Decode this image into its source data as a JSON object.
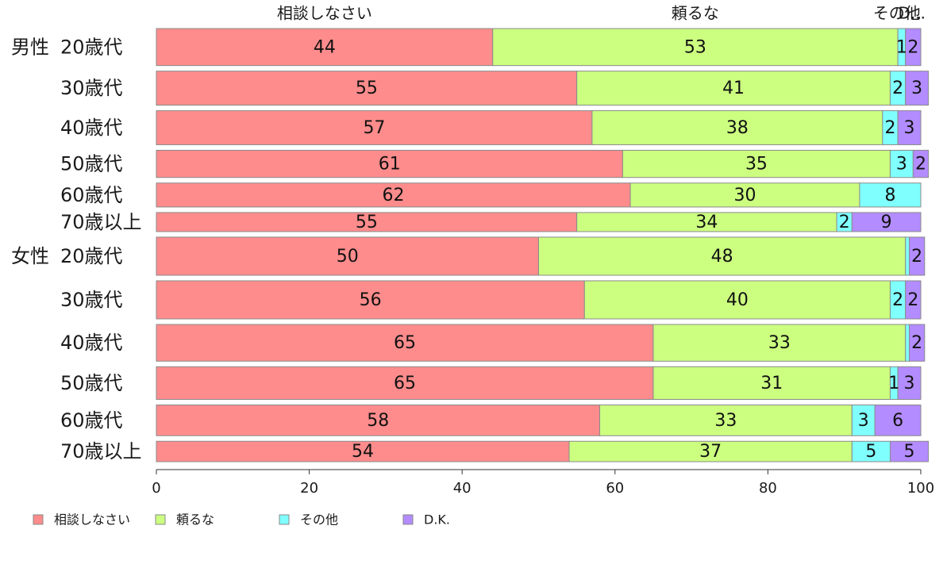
{
  "chart_data": {
    "type": "bar",
    "orientation": "horizontal",
    "stacked": true,
    "categories": [
      {
        "group": "男性",
        "label": "20歳代"
      },
      {
        "group": "",
        "label": "30歳代"
      },
      {
        "group": "",
        "label": "40歳代"
      },
      {
        "group": "",
        "label": "50歳代"
      },
      {
        "group": "",
        "label": "60歳代"
      },
      {
        "group": "",
        "label": "70歳以上"
      },
      {
        "group": "女性",
        "label": "20歳代"
      },
      {
        "group": "",
        "label": "30歳代"
      },
      {
        "group": "",
        "label": "40歳代"
      },
      {
        "group": "",
        "label": "50歳代"
      },
      {
        "group": "",
        "label": "60歳代"
      },
      {
        "group": "",
        "label": "70歳以上"
      }
    ],
    "row_weights": [
      1.36,
      1.25,
      1.25,
      1.0,
      0.88,
      0.7,
      1.4,
      1.4,
      1.35,
      1.2,
      1.13,
      0.75
    ],
    "series": [
      {
        "name": "相談しなさい",
        "color": "#ff8c8c",
        "values": [
          44,
          55,
          57,
          61,
          62,
          55,
          50,
          56,
          65,
          65,
          58,
          54
        ]
      },
      {
        "name": "頼るな",
        "color": "#ccff80",
        "values": [
          53,
          41,
          38,
          35,
          30,
          34,
          48,
          40,
          33,
          31,
          33,
          37
        ]
      },
      {
        "name": "その他",
        "color": "#80ffff",
        "values": [
          1,
          2,
          2,
          3,
          8,
          2,
          0.5,
          2,
          0.5,
          1,
          3,
          5
        ]
      },
      {
        "name": "D.K.",
        "color": "#b38cff",
        "values": [
          2,
          3,
          3,
          2,
          0,
          9,
          2,
          2,
          2,
          3,
          6,
          5
        ]
      }
    ],
    "segment_labels": [
      [
        "44",
        "53",
        "1",
        "2"
      ],
      [
        "55",
        "41",
        "2",
        "3"
      ],
      [
        "57",
        "38",
        "2",
        "3"
      ],
      [
        "61",
        "35",
        "3",
        "2"
      ],
      [
        "62",
        "30",
        "8",
        ""
      ],
      [
        "55",
        "34",
        "2",
        "9"
      ],
      [
        "50",
        "48",
        "",
        "2"
      ],
      [
        "56",
        "40",
        "2",
        "2"
      ],
      [
        "65",
        "33",
        "",
        "2"
      ],
      [
        "65",
        "31",
        "1",
        "3"
      ],
      [
        "58",
        "33",
        "3",
        "6"
      ],
      [
        "54",
        "37",
        "5",
        "5"
      ]
    ],
    "top_labels": [
      "相談しなさい",
      "頼るな",
      "その他",
      "D..."
    ],
    "xlim": [
      0,
      100
    ],
    "xticks": [
      "0",
      "20",
      "40",
      "60",
      "80",
      "100"
    ],
    "grid": false,
    "legend": {
      "position": "bottom-left",
      "entries": [
        "相談しなさい",
        "頼るな",
        "その他",
        "D.K."
      ]
    },
    "title": "",
    "xlabel": "",
    "ylabel": ""
  }
}
